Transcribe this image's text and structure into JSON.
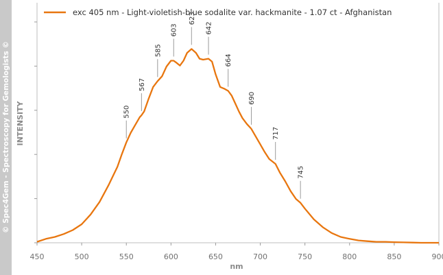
{
  "watermark": "© Spec4Gem - Spectroscopy for Gemologists ©",
  "chart_data": {
    "type": "line",
    "legend": "exc 405 nm - Light-violetish-blue sodalite var. hackmanite - 1.07 ct - Afghanistan",
    "xlabel": "nm",
    "ylabel": "INTENSITY",
    "xlim": [
      450,
      900
    ],
    "ylim": [
      0,
      1
    ],
    "xticks": [
      450,
      500,
      550,
      600,
      650,
      700,
      750,
      800,
      850,
      900
    ],
    "y_tick_labels_shown": false,
    "grid": false,
    "legend_position": "top-left",
    "color": "#e8760f",
    "peaks": [
      550,
      567,
      585,
      603,
      623,
      642,
      664,
      690,
      717,
      745
    ],
    "series": [
      {
        "name": "exc 405 nm - Light-violetish-blue sodalite var. hackmanite - 1.07 ct - Afghanistan",
        "x": [
          450,
          460,
          470,
          480,
          490,
          500,
          510,
          520,
          530,
          540,
          545,
          550,
          555,
          560,
          565,
          567,
          570,
          575,
          580,
          585,
          590,
          595,
          600,
          603,
          606,
          610,
          614,
          618,
          623,
          628,
          632,
          636,
          642,
          646,
          650,
          655,
          660,
          664,
          668,
          672,
          676,
          680,
          685,
          690,
          695,
          700,
          705,
          710,
          717,
          722,
          728,
          734,
          740,
          745,
          750,
          760,
          770,
          780,
          790,
          800,
          810,
          820,
          830,
          840,
          850,
          860,
          870,
          880,
          890,
          900
        ],
        "y": [
          0.005,
          0.02,
          0.03,
          0.045,
          0.065,
          0.095,
          0.145,
          0.21,
          0.295,
          0.39,
          0.455,
          0.515,
          0.565,
          0.605,
          0.645,
          0.655,
          0.675,
          0.74,
          0.8,
          0.83,
          0.855,
          0.905,
          0.935,
          0.935,
          0.925,
          0.91,
          0.935,
          0.975,
          0.995,
          0.975,
          0.945,
          0.94,
          0.945,
          0.93,
          0.865,
          0.8,
          0.79,
          0.78,
          0.755,
          0.715,
          0.675,
          0.64,
          0.61,
          0.585,
          0.545,
          0.505,
          0.465,
          0.43,
          0.405,
          0.36,
          0.315,
          0.265,
          0.225,
          0.205,
          0.175,
          0.12,
          0.08,
          0.05,
          0.03,
          0.02,
          0.012,
          0.008,
          0.005,
          0.005,
          0.003,
          0.002,
          0.001,
          0.0,
          0.0,
          0.0
        ]
      }
    ]
  }
}
